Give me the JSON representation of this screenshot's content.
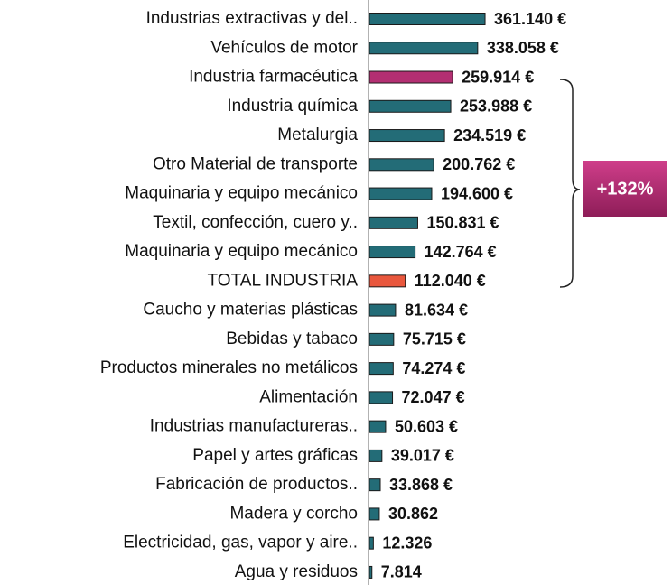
{
  "chart_data": {
    "type": "barh",
    "categories": [
      "Industrias extractivas y del..",
      "Vehículos de motor",
      "Industria farmacéutica",
      "Industria química",
      "Metalurgia",
      "Otro Material de transporte",
      "Maquinaria y equipo mecánico",
      "Textil, confección, cuero y..",
      "Maquinaria y equipo mecánico",
      "TOTAL INDUSTRIA",
      "Caucho y materias plásticas",
      "Bebidas y tabaco",
      "Productos minerales no metálicos",
      "Alimentación",
      "Industrias manufactureras..",
      "Papel y artes gráficas",
      "Fabricación de productos..",
      "Madera y corcho",
      "Electricidad, gas, vapor y aire..",
      "Agua y residuos"
    ],
    "values": [
      361140,
      338058,
      259914,
      253988,
      234519,
      200762,
      194600,
      150831,
      142764,
      112040,
      81634,
      75715,
      74274,
      72047,
      50603,
      39017,
      33868,
      30862,
      12326,
      7814
    ],
    "value_labels": [
      "361.140 €",
      "338.058 €",
      "259.914 €",
      "253.988 €",
      "234.519 €",
      "200.762 €",
      "194.600 €",
      "150.831 €",
      "142.764 €",
      "112.040 €",
      "81.634 €",
      "75.715 €",
      "74.274 €",
      "72.047 €",
      "50.603 €",
      "39.017 €",
      "33.868 €",
      "30.862",
      "12.326",
      "7.814"
    ],
    "colors": [
      "#236c77",
      "#236c77",
      "#b32f72",
      "#236c77",
      "#236c77",
      "#236c77",
      "#236c77",
      "#236c77",
      "#236c77",
      "#e9573d",
      "#236c77",
      "#236c77",
      "#236c77",
      "#236c77",
      "#236c77",
      "#236c77",
      "#236c77",
      "#236c77",
      "#236c77",
      "#236c77"
    ],
    "xlim": [
      0,
      400000
    ],
    "annotation": "+132%"
  }
}
